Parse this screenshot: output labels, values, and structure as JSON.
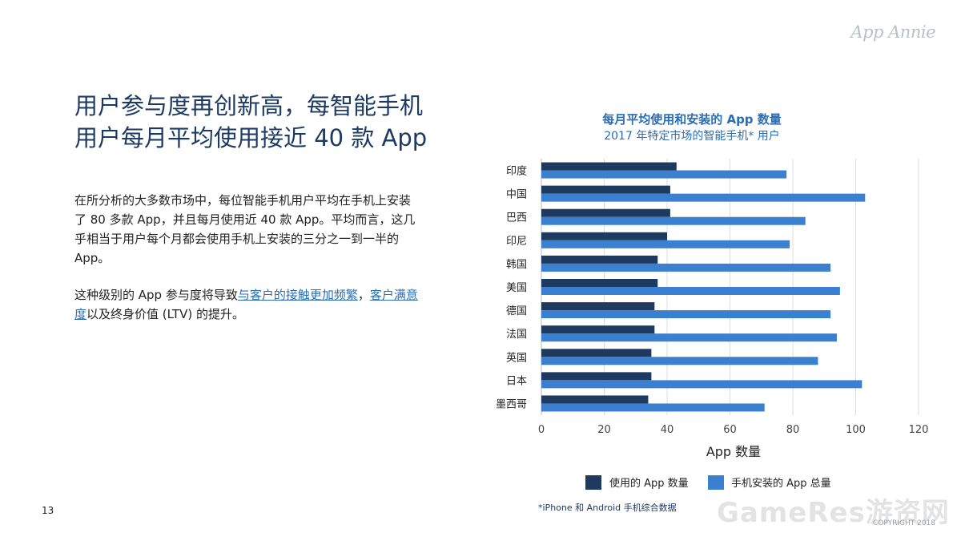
{
  "logo": "App Annie",
  "headline": {
    "line1": "用户参与度再创新高，每智能手机",
    "line2": "用户每月平均使用接近 40 款 App"
  },
  "body": {
    "p1": "在所分析的大多数市场中，每位智能手机用户平均在手机上安装了 80 多款 App，并且每月使用近 40 款 App。平均而言，这几乎相当于用户每个月都会使用手机上安装的三分之一到一半的 App。",
    "p2_pre": "这种级别的 App 参与度将导致",
    "p2_link1": "与客户的接触更加频繁",
    "p2_comma": "，",
    "p2_link2": "客户满意度",
    "p2_post": "以及终身价值 (LTV) 的提升。"
  },
  "page_number": "13",
  "watermark": "GameRes游资网",
  "copyright": "COPYRIGHT 2018",
  "colors": {
    "used": "#1f3a5f",
    "installed": "#3a7fd0",
    "title": "#2a6db5",
    "headline": "#1d3a64"
  },
  "chart_data": {
    "type": "bar",
    "orientation": "horizontal",
    "title": "每月平均使用和安装的 App 数量",
    "subtitle": "2017 年特定市场的智能手机* 用户",
    "xlabel": "App 数量",
    "ylabel": "",
    "xlim": [
      0,
      120
    ],
    "xticks": [
      0,
      20,
      40,
      60,
      80,
      100,
      120
    ],
    "grid": true,
    "legend_position": "bottom",
    "categories": [
      "印度",
      "中国",
      "巴西",
      "印尼",
      "韩国",
      "美国",
      "德国",
      "法国",
      "英国",
      "日本",
      "墨西哥"
    ],
    "series": [
      {
        "name": "使用的 App 数量",
        "values": [
          43,
          41,
          41,
          40,
          37,
          37,
          36,
          36,
          35,
          35,
          34
        ]
      },
      {
        "name": "手机安装的 App 总量",
        "values": [
          78,
          103,
          84,
          79,
          92,
          95,
          92,
          94,
          88,
          102,
          71
        ]
      }
    ],
    "footnote": "*iPhone 和 Android 手机综合数据"
  }
}
